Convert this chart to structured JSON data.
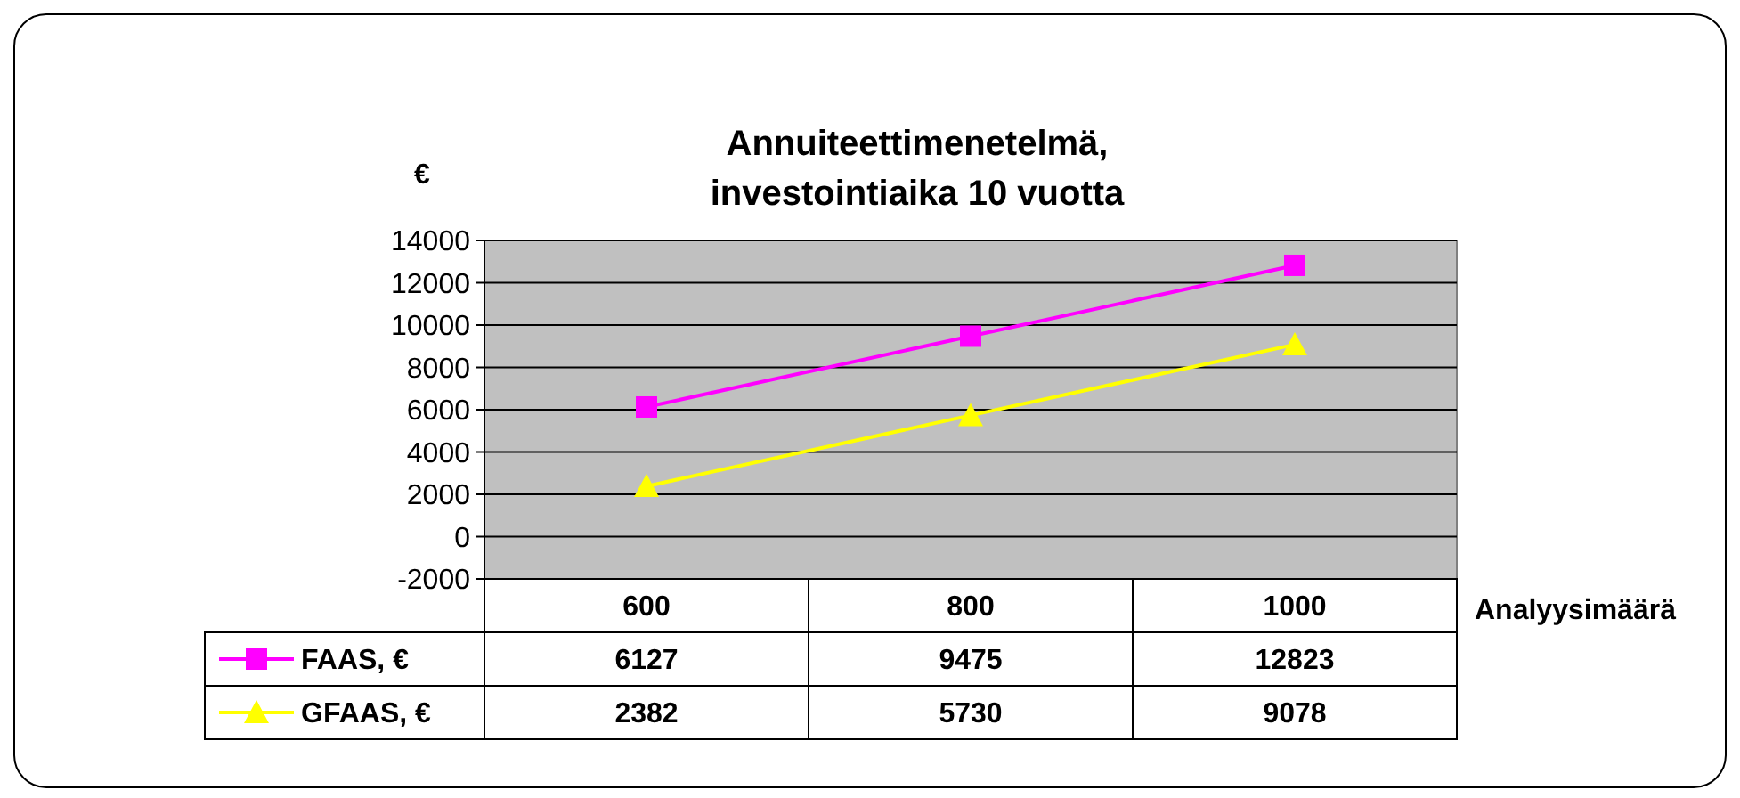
{
  "chart_data": {
    "type": "line",
    "title": "Annuiteettimenetelmä,\ninvestointiaika 10 vuotta",
    "ylabel": "€",
    "xlabel": "Analyysimäärä",
    "categories": [
      "600",
      "800",
      "1000"
    ],
    "series": [
      {
        "name": "FAAS, €",
        "color": "#ff00ff",
        "marker": "square",
        "values": [
          6127,
          9475,
          12823
        ]
      },
      {
        "name": "GFAAS, €",
        "color": "#ffff00",
        "marker": "triangle",
        "values": [
          2382,
          5730,
          9078
        ]
      }
    ],
    "ylim": [
      -2000,
      14000
    ],
    "yticks": [
      -2000,
      0,
      2000,
      4000,
      6000,
      8000,
      10000,
      12000,
      14000
    ],
    "grid": "y",
    "legend": "left",
    "data_labels": true
  }
}
